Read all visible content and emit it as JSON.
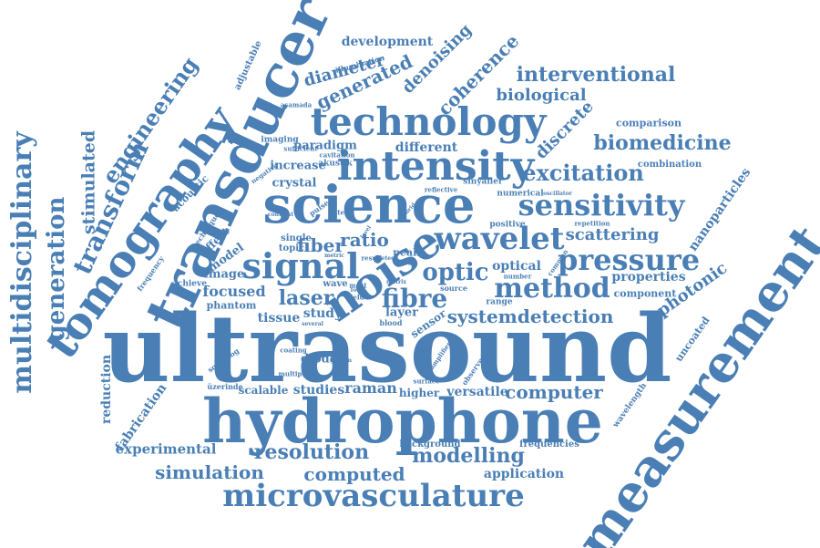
{
  "colors": {
    "word": "#4a7fb5",
    "background": "#ffffff"
  },
  "words": {
    "ultrasound": "ultrasound",
    "hydrophone": "hydrophone",
    "measurement": "measurement",
    "transducer": "transducer",
    "tomography": "tomography",
    "science": "science",
    "technology": "technology",
    "intensity": "intensity",
    "noise": "noise",
    "signal": "signal",
    "microvasculature": "microvasculature",
    "sensitivity": "sensitivity",
    "wavelet": "wavelet",
    "pressure": "pressure",
    "method": "method",
    "multidisciplinary": "multidisciplinary",
    "generation": "generation",
    "transform": "transform",
    "engineering": "engineering",
    "stimulated": "stimulated",
    "interventional": "interventional",
    "biomedicine": "biomedicine",
    "excitation": "excitation",
    "resolution": "resolution",
    "modelling": "modelling",
    "computed": "computed",
    "simulation": "simulation",
    "experimental": "experimental",
    "fibre": "fibre",
    "laser": "laser",
    "optic": "optic",
    "fiber": "fiber",
    "ratio": "ratio",
    "systemdetection": "systemdetection",
    "computer": "computer",
    "scattering": "scattering",
    "nanoparticles": "nanoparticles",
    "photonic": "photonic",
    "discrete": "discrete",
    "coherence": "coherence",
    "denoising": "denoising",
    "generated": "generated",
    "diameter": "diameter",
    "development": "development",
    "biological": "biological",
    "reduction": "reduction",
    "fabrication": "fabrication",
    "application": "application",
    "versatile": "versatile",
    "raman": "raman",
    "studies": "studies",
    "scalable": "scalable",
    "uncoated": "uncoated",
    "wavelength": "wavelength",
    "frequencies": "frequencies",
    "background": "background",
    "optical": "optical",
    "properties": "properties",
    "component": "component",
    "comparison": "comparison",
    "combination": "combination",
    "paradigm": "paradigm",
    "different": "different",
    "increase": "increase",
    "crystal": "crystal",
    "focused": "focused",
    "tissue": "tissue",
    "image": "image",
    "model": "model",
    "effect": "effect",
    "acoustic": "acoustic",
    "adjustable": "adjustable",
    "illumination": "illumination",
    "imaging": "imaging",
    "akustik": "akustik",
    "cavitation": "cavitation",
    "sufficient": "sufficient",
    "asamada": "aşamada",
    "study": "study",
    "diode": "diode",
    "layer": "layer",
    "sensor": "sensor",
    "higher": "higher",
    "single": "single",
    "topic": "topic",
    "lateral": "lateral",
    "pulse": "pulse",
    "numerical": "numerical",
    "oscillator": "oscillator",
    "positive": "positive",
    "repetition": "repetition",
    "reflective": "reflective",
    "sinyaller": "sinyaller",
    "hybrid": "hybrid",
    "technique": "technique",
    "frequency": "frequency",
    "achieve": "achieve",
    "phantom": "phantom",
    "sqtwolog": "sqtwolog",
    "uzerinde": "üzerinde",
    "multiple": "multiple",
    "coating": "coating",
    "girisim": "girişim",
    "surface": "surface",
    "observed": "observed",
    "amplifier": "amplifier",
    "peak": "peak",
    "focus": "focus",
    "detect": "detect",
    "result": "result",
    "range": "range",
    "number": "number",
    "common": "common",
    "source": "source",
    "wave": "wave",
    "field": "field",
    "blood": "blood",
    "several": "several",
    "matrix": "matrix",
    "most": "most",
    "focal": "focal",
    "negative": "negative",
    "contrast": "contrast",
    "level": "level",
    "metric": "metric"
  }
}
